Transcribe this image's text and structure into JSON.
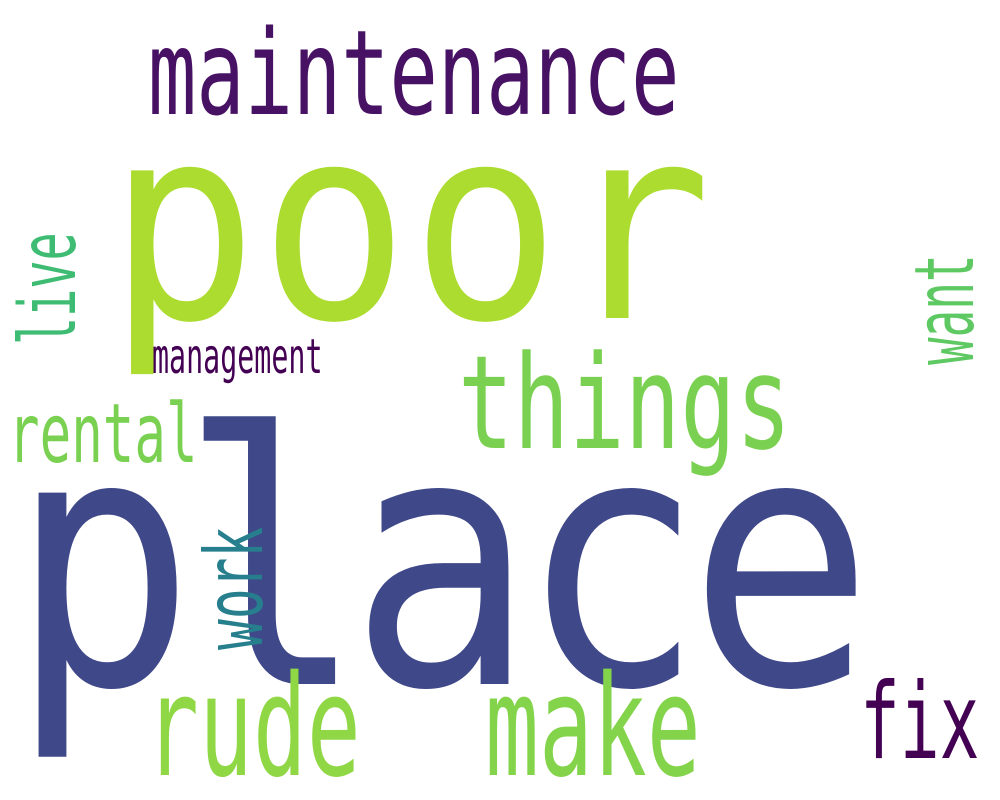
{
  "words": [
    {
      "text": "poor",
      "color": "#addc30"
    },
    {
      "text": "place",
      "color": "#3f4889"
    },
    {
      "text": "maintenance",
      "color": "#471164"
    },
    {
      "text": "things",
      "color": "#7ad151"
    },
    {
      "text": "rude",
      "color": "#8fd744"
    },
    {
      "text": "make",
      "color": "#84d44b"
    },
    {
      "text": "live",
      "color": "#3fbc73"
    },
    {
      "text": "want",
      "color": "#5ec962"
    },
    {
      "text": "rental",
      "color": "#7ad151"
    },
    {
      "text": "management",
      "color": "#440154"
    },
    {
      "text": "work",
      "color": "#277f8e"
    },
    {
      "text": "fix",
      "color": "#440154"
    }
  ]
}
